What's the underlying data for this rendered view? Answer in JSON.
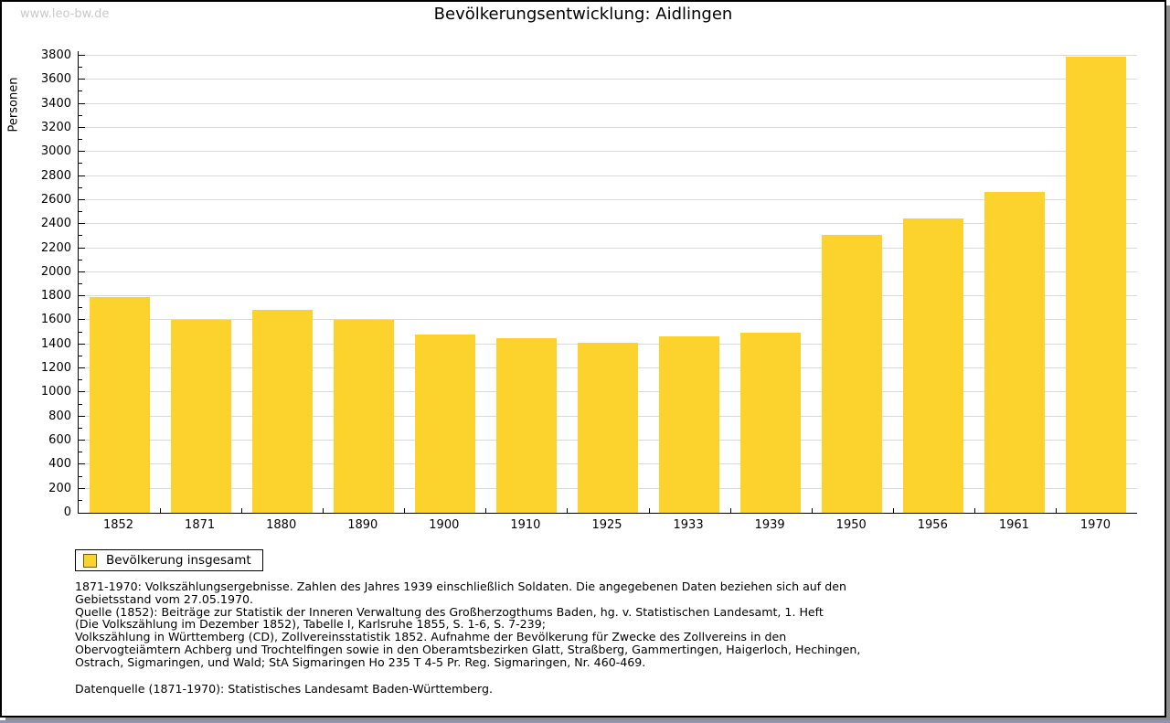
{
  "watermark": "www.leo-bw.de",
  "title": "Bevölkerungsentwicklung: Aidlingen",
  "chart_data": {
    "type": "bar",
    "title": "Bevölkerungsentwicklung: Aidlingen",
    "xlabel": "",
    "ylabel": "Personen",
    "categories": [
      "1852",
      "1871",
      "1880",
      "1890",
      "1900",
      "1910",
      "1925",
      "1933",
      "1939",
      "1950",
      "1956",
      "1961",
      "1970"
    ],
    "series": [
      {
        "name": "Bevölkerung insgesamt",
        "values": [
          1790,
          1605,
          1690,
          1600,
          1485,
          1450,
          1415,
          1465,
          1495,
          2310,
          2445,
          2670,
          3795
        ]
      }
    ],
    "ylim": [
      0,
      3800
    ],
    "ytick_step": 200,
    "yminor_step": 100,
    "grid": true,
    "legend_position": "bottom-left",
    "bar_color": "#FCD32D"
  },
  "legend": {
    "label": "Bevölkerung insgesamt",
    "swatch_color": "#FCD32D"
  },
  "footnotes": [
    "1871-1970: Volkszählungsergebnisse. Zahlen des Jahres 1939 einschließlich Soldaten. Die angegebenen Daten beziehen sich auf den",
    "Gebietsstand vom 27.05.1970.",
    "Quelle (1852): Beiträge zur Statistik der Inneren Verwaltung des Großherzogthums Baden, hg. v. Statistischen Landesamt, 1. Heft",
    "(Die Volkszählung im Dezember 1852), Tabelle I, Karlsruhe 1855, S. 1-6, S. 7-239;",
    "Volkszählung in Württemberg (CD), Zollvereinsstatistik 1852. Aufnahme der Bevölkerung für Zwecke des Zollvereins in den",
    "Obervogteiämtern Achberg und Trochtelfingen sowie in den Oberamtsbezirken Glatt, Straßberg, Gammertingen, Haigerloch, Hechingen,",
    "Ostrach, Sigmaringen, und Wald; StA Sigmaringen Ho 235 T 4-5 Pr. Reg. Sigmaringen, Nr. 460-469."
  ],
  "datasource": "Datenquelle (1871-1970): Statistisches Landesamt Baden-Württemberg."
}
